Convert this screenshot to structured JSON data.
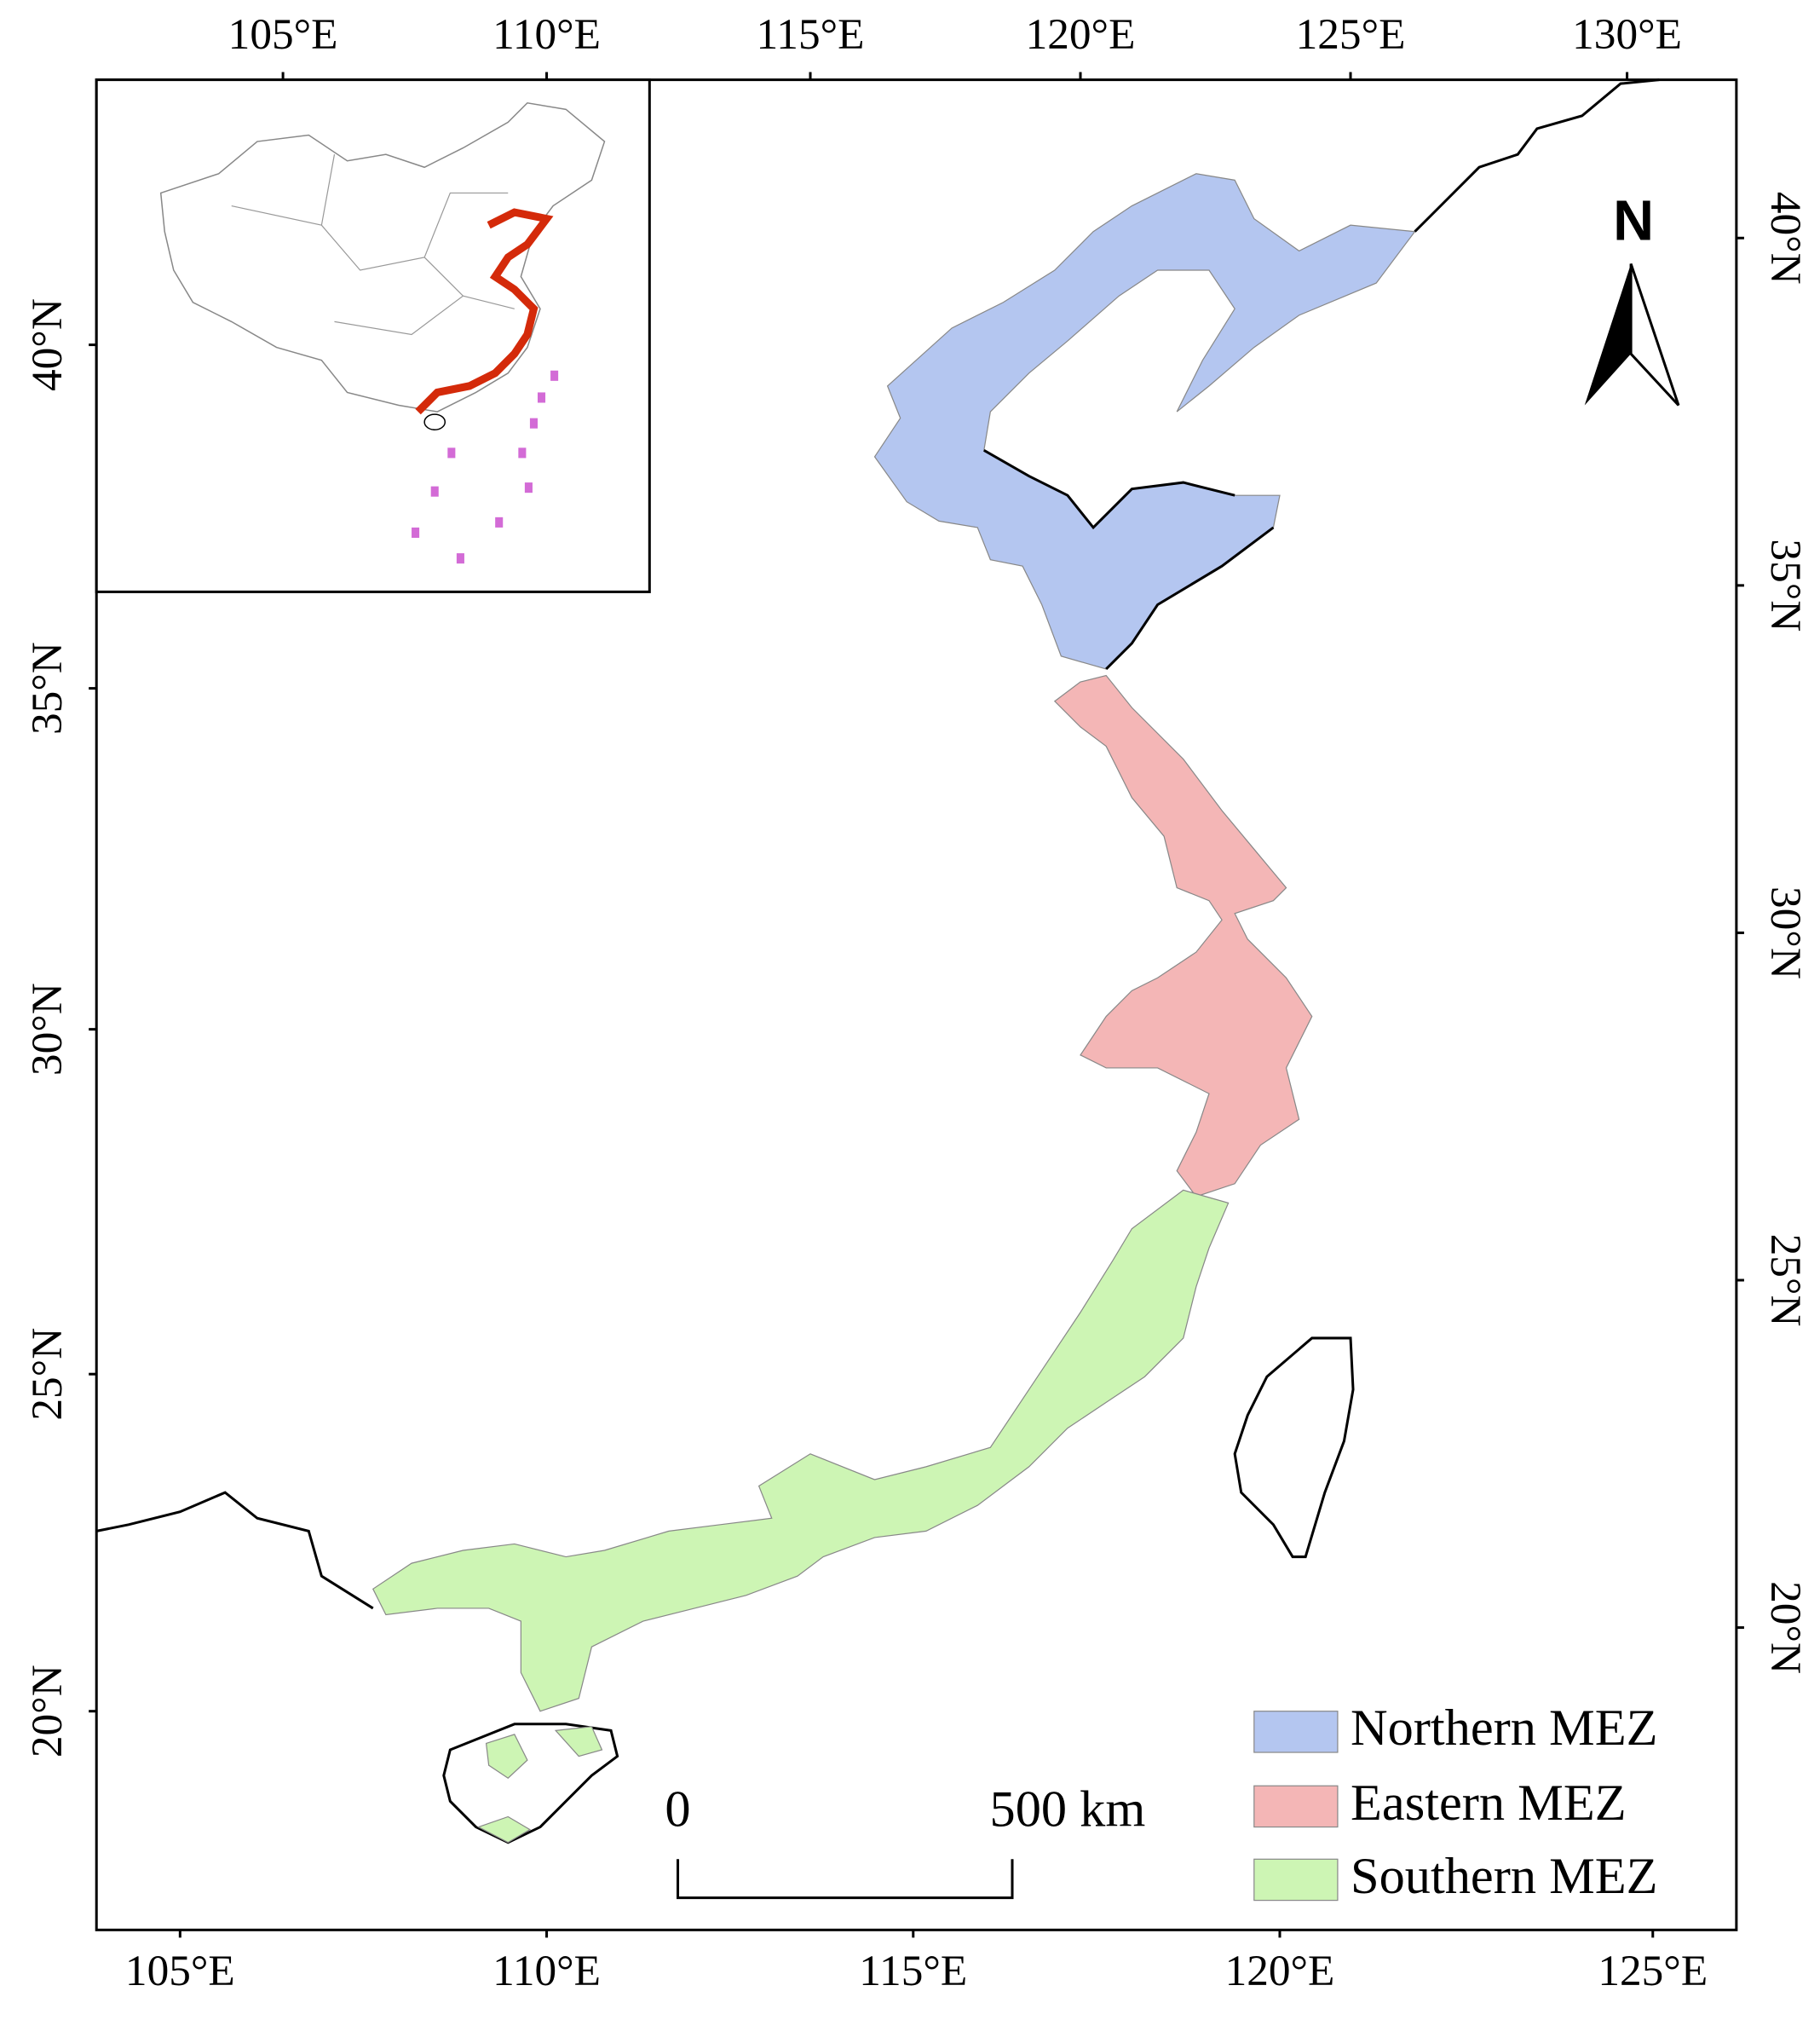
{
  "map": {
    "top_labels": [
      "105°E",
      "110°E",
      "115°E",
      "120°E",
      "125°E",
      "130°E"
    ],
    "bottom_labels": [
      "105°E",
      "110°E",
      "115°E",
      "120°E",
      "125°E"
    ],
    "left_labels": [
      "40°N",
      "35°N",
      "30°N",
      "25°N",
      "20°N"
    ],
    "right_labels": [
      "40°N",
      "35°N",
      "30°N",
      "25°N",
      "20°N"
    ],
    "north_arrow": "N",
    "scale_bar": {
      "start": "0",
      "end": "500 km"
    },
    "legend": [
      {
        "label": "Northern MEZ",
        "color": "#b4c6f0"
      },
      {
        "label": "Eastern MEZ",
        "color": "#f4b6b6"
      },
      {
        "label": "Southern MEZ",
        "color": "#cdf5b4"
      }
    ]
  }
}
